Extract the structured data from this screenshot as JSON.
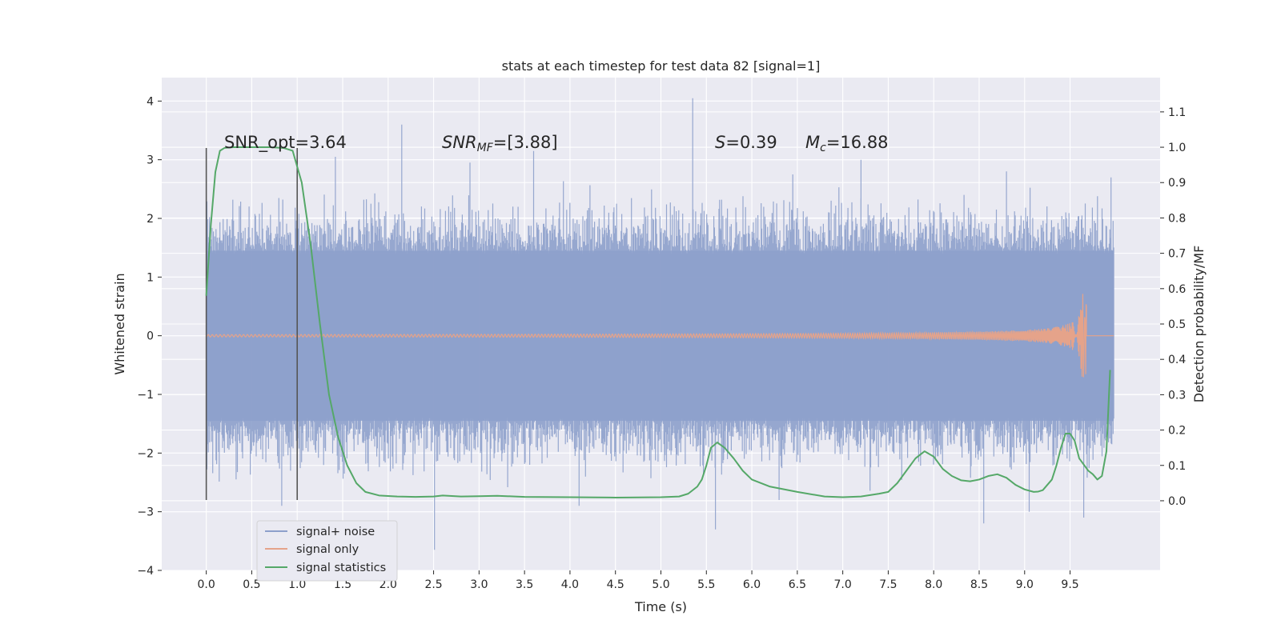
{
  "chart_data": {
    "type": "line",
    "title": "stats at each timestep for test data 82 [signal=1]",
    "xlabel": "Time (s)",
    "ylabel": "Whitened strain",
    "ylabel_right": "Detection probability/MF",
    "xlim": [
      -0.49,
      10.49
    ],
    "ylim": [
      -4.0,
      4.4
    ],
    "ylim_right": [
      -0.197,
      1.197
    ],
    "xticks": [
      "0.0",
      "0.5",
      "1.0",
      "1.5",
      "2.0",
      "2.5",
      "3.0",
      "3.5",
      "4.0",
      "4.5",
      "5.0",
      "5.5",
      "6.0",
      "6.5",
      "7.0",
      "7.5",
      "8.0",
      "8.5",
      "9.0",
      "9.5"
    ],
    "yticks_left": [
      "−4",
      "−3",
      "−2",
      "−1",
      "0",
      "1",
      "2",
      "3",
      "4"
    ],
    "yticks_right": [
      "0.0",
      "0.1",
      "0.2",
      "0.3",
      "0.4",
      "0.5",
      "0.6",
      "0.7",
      "0.8",
      "0.9",
      "1.0",
      "1.1"
    ],
    "grid": true,
    "legend_position": "lower-left",
    "annotations": {
      "snr_opt": "SNR_opt=3.64",
      "snr_mf_label": "SNR",
      "snr_mf_sub": "MF",
      "snr_mf_value": "=[3.88]",
      "s_label": "S",
      "s_value": "=0.39",
      "mc_label": "M",
      "mc_sub": "c",
      "mc_value": "=16.88"
    },
    "vertical_markers": [
      {
        "x": 0.0,
        "y_range": [
          -2.8,
          3.2
        ]
      },
      {
        "x": 1.0,
        "y_range": [
          -2.8,
          3.2
        ]
      }
    ],
    "series": [
      {
        "name": "signal+ noise",
        "color": "#8da0cb",
        "kind": "noise",
        "x_range": [
          0.0,
          9.98
        ],
        "envelope": [
          -1.45,
          1.45
        ],
        "spikes": [
          {
            "x": 2.15,
            "y": 3.6
          },
          {
            "x": 5.35,
            "y": 4.05
          },
          {
            "x": 3.6,
            "y": 3.15
          },
          {
            "x": 1.42,
            "y": 3.05
          },
          {
            "x": 2.9,
            "y": 2.95
          },
          {
            "x": 6.45,
            "y": 2.75
          },
          {
            "x": 7.2,
            "y": 3.0
          },
          {
            "x": 8.8,
            "y": 2.8
          },
          {
            "x": 9.95,
            "y": 2.7
          },
          {
            "x": 2.51,
            "y": -3.65
          },
          {
            "x": 5.6,
            "y": -3.3
          },
          {
            "x": 8.55,
            "y": -3.2
          },
          {
            "x": 9.65,
            "y": -3.1
          },
          {
            "x": 0.83,
            "y": -2.9
          },
          {
            "x": 4.1,
            "y": -2.9
          },
          {
            "x": 6.3,
            "y": -2.8
          },
          {
            "x": 9.05,
            "y": -3.0
          }
        ]
      },
      {
        "name": "signal only",
        "color": "#e5a38a",
        "kind": "chirp",
        "x_range": [
          0.0,
          9.68
        ],
        "amplitude_end": 0.72
      },
      {
        "name": "signal statistics",
        "color": "#55a868",
        "kind": "line",
        "axis": "right",
        "x": [
          0.0,
          0.05,
          0.1,
          0.15,
          0.2,
          0.3,
          0.5,
          0.7,
          0.85,
          0.95,
          1.05,
          1.15,
          1.25,
          1.35,
          1.45,
          1.55,
          1.65,
          1.75,
          1.9,
          2.1,
          2.3,
          2.5,
          2.6,
          2.8,
          3.0,
          3.2,
          3.5,
          4.0,
          4.5,
          5.0,
          5.2,
          5.3,
          5.4,
          5.45,
          5.5,
          5.55,
          5.62,
          5.7,
          5.8,
          5.9,
          6.0,
          6.2,
          6.5,
          6.8,
          7.0,
          7.2,
          7.4,
          7.5,
          7.6,
          7.7,
          7.8,
          7.9,
          8.0,
          8.1,
          8.2,
          8.3,
          8.4,
          8.5,
          8.6,
          8.7,
          8.8,
          8.9,
          9.0,
          9.1,
          9.15,
          9.2,
          9.3,
          9.35,
          9.4,
          9.45,
          9.5,
          9.55,
          9.6,
          9.7,
          9.75,
          9.8,
          9.85,
          9.9,
          9.94
        ],
        "y": [
          0.58,
          0.78,
          0.93,
          0.99,
          0.998,
          1.0,
          1.0,
          1.0,
          0.998,
          0.99,
          0.9,
          0.72,
          0.5,
          0.3,
          0.18,
          0.1,
          0.05,
          0.025,
          0.015,
          0.012,
          0.011,
          0.012,
          0.015,
          0.012,
          0.013,
          0.014,
          0.011,
          0.01,
          0.009,
          0.01,
          0.012,
          0.02,
          0.04,
          0.06,
          0.1,
          0.15,
          0.165,
          0.15,
          0.12,
          0.085,
          0.06,
          0.04,
          0.025,
          0.012,
          0.01,
          0.012,
          0.02,
          0.025,
          0.05,
          0.085,
          0.12,
          0.14,
          0.125,
          0.09,
          0.07,
          0.058,
          0.055,
          0.06,
          0.07,
          0.075,
          0.065,
          0.045,
          0.032,
          0.025,
          0.026,
          0.03,
          0.06,
          0.1,
          0.15,
          0.19,
          0.19,
          0.17,
          0.12,
          0.085,
          0.075,
          0.06,
          0.07,
          0.14,
          0.37
        ]
      }
    ]
  }
}
